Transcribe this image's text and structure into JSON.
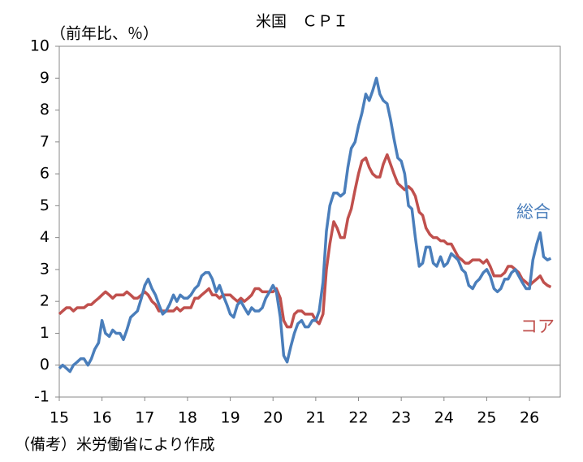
{
  "chart_data": {
    "type": "line",
    "title": "米国　ＣＰＩ",
    "y_axis_label": "（前年比、％）",
    "note": "（備考）米労働省により作成",
    "xlim": [
      15,
      26.72
    ],
    "xticks": [
      15,
      16,
      17,
      18,
      19,
      20,
      21,
      22,
      23,
      24,
      25,
      26
    ],
    "ylim": [
      -1,
      10
    ],
    "yticks": [
      -1,
      0,
      1,
      2,
      3,
      4,
      5,
      6,
      7,
      8,
      9,
      10
    ],
    "grid": false,
    "x": [
      15,
      15.08,
      15.17,
      15.25,
      15.33,
      15.42,
      15.5,
      15.58,
      15.67,
      15.75,
      15.83,
      15.92,
      16,
      16.08,
      16.17,
      16.25,
      16.33,
      16.42,
      16.5,
      16.58,
      16.67,
      16.75,
      16.83,
      16.92,
      17,
      17.08,
      17.17,
      17.25,
      17.33,
      17.42,
      17.5,
      17.58,
      17.67,
      17.75,
      17.83,
      17.92,
      18,
      18.08,
      18.17,
      18.25,
      18.33,
      18.42,
      18.5,
      18.58,
      18.67,
      18.75,
      18.83,
      18.92,
      19,
      19.08,
      19.17,
      19.25,
      19.33,
      19.42,
      19.5,
      19.58,
      19.67,
      19.75,
      19.83,
      19.92,
      20,
      20.08,
      20.17,
      20.25,
      20.33,
      20.42,
      20.5,
      20.58,
      20.67,
      20.75,
      20.83,
      20.92,
      21,
      21.08,
      21.17,
      21.25,
      21.33,
      21.42,
      21.5,
      21.58,
      21.67,
      21.75,
      21.83,
      21.92,
      22,
      22.08,
      22.17,
      22.25,
      22.33,
      22.42,
      22.5,
      22.58,
      22.67,
      22.75,
      22.83,
      22.92,
      23,
      23.08,
      23.17,
      23.25,
      23.33,
      23.42,
      23.5,
      23.58,
      23.67,
      23.75,
      23.83,
      23.92,
      24,
      24.08,
      24.17,
      24.25,
      24.33,
      24.42,
      24.5,
      24.58,
      24.67,
      24.75,
      24.83,
      24.92,
      25,
      25.08,
      25.17,
      25.25,
      25.33,
      25.42,
      25.5,
      25.58,
      25.67,
      25.75,
      25.83,
      25.92,
      26,
      26.08,
      26.17,
      26.25,
      26.33,
      26.42,
      26.5
    ],
    "series": [
      {
        "name": "総合",
        "color": "#4a7ebb",
        "values": [
          -0.1,
          0.0,
          -0.1,
          -0.2,
          0.0,
          0.1,
          0.2,
          0.2,
          0.0,
          0.2,
          0.5,
          0.7,
          1.4,
          1.0,
          0.9,
          1.1,
          1.0,
          1.0,
          0.8,
          1.1,
          1.5,
          1.6,
          1.7,
          2.1,
          2.5,
          2.7,
          2.4,
          2.2,
          1.9,
          1.6,
          1.7,
          1.9,
          2.2,
          2.0,
          2.2,
          2.1,
          2.1,
          2.2,
          2.4,
          2.5,
          2.8,
          2.9,
          2.9,
          2.7,
          2.3,
          2.5,
          2.2,
          1.9,
          1.6,
          1.5,
          1.9,
          2.0,
          1.8,
          1.6,
          1.8,
          1.7,
          1.7,
          1.8,
          2.1,
          2.3,
          2.5,
          2.3,
          1.5,
          0.3,
          0.1,
          0.6,
          1.0,
          1.3,
          1.4,
          1.2,
          1.2,
          1.4,
          1.4,
          1.7,
          2.6,
          4.2,
          5.0,
          5.4,
          5.4,
          5.3,
          5.4,
          6.2,
          6.8,
          7.0,
          7.5,
          7.9,
          8.5,
          8.3,
          8.6,
          9.0,
          8.5,
          8.3,
          8.2,
          7.7,
          7.1,
          6.5,
          6.4,
          6.0,
          5.0,
          4.9,
          4.0,
          3.1,
          3.2,
          3.7,
          3.7,
          3.2,
          3.1,
          3.4,
          3.1,
          3.2,
          3.5,
          3.4,
          3.3,
          3.0,
          2.9,
          2.5,
          2.4,
          2.6,
          2.7,
          2.9,
          3.0,
          2.8,
          2.4,
          2.3,
          2.4,
          2.7,
          2.7,
          2.9,
          3.0,
          2.8,
          2.6,
          2.4,
          2.4,
          3.3,
          3.8,
          4.15,
          3.4,
          3.3,
          3.35
        ]
      },
      {
        "name": "コア",
        "color": "#c0504d",
        "values": [
          1.6,
          1.7,
          1.8,
          1.8,
          1.7,
          1.8,
          1.8,
          1.8,
          1.9,
          1.9,
          2.0,
          2.1,
          2.2,
          2.3,
          2.2,
          2.1,
          2.2,
          2.2,
          2.2,
          2.3,
          2.2,
          2.1,
          2.1,
          2.2,
          2.3,
          2.2,
          2.0,
          1.9,
          1.7,
          1.7,
          1.7,
          1.7,
          1.7,
          1.8,
          1.7,
          1.8,
          1.8,
          1.8,
          2.1,
          2.1,
          2.2,
          2.3,
          2.4,
          2.2,
          2.2,
          2.1,
          2.2,
          2.2,
          2.2,
          2.1,
          2.0,
          2.1,
          2.0,
          2.1,
          2.2,
          2.4,
          2.4,
          2.3,
          2.3,
          2.3,
          2.3,
          2.4,
          2.1,
          1.4,
          1.2,
          1.2,
          1.6,
          1.7,
          1.7,
          1.6,
          1.6,
          1.6,
          1.4,
          1.3,
          1.6,
          3.0,
          3.8,
          4.5,
          4.3,
          4.0,
          4.0,
          4.6,
          4.9,
          5.5,
          6.0,
          6.4,
          6.5,
          6.2,
          6.0,
          5.9,
          5.9,
          6.3,
          6.6,
          6.3,
          6.0,
          5.7,
          5.6,
          5.5,
          5.6,
          5.5,
          5.3,
          4.8,
          4.7,
          4.3,
          4.1,
          4.0,
          4.0,
          3.9,
          3.9,
          3.8,
          3.8,
          3.6,
          3.4,
          3.3,
          3.2,
          3.2,
          3.3,
          3.3,
          3.3,
          3.2,
          3.3,
          3.1,
          2.8,
          2.8,
          2.8,
          2.9,
          3.1,
          3.1,
          3.0,
          2.9,
          2.7,
          2.6,
          2.5,
          2.6,
          2.7,
          2.8,
          2.6,
          2.5,
          2.45
        ]
      }
    ]
  }
}
